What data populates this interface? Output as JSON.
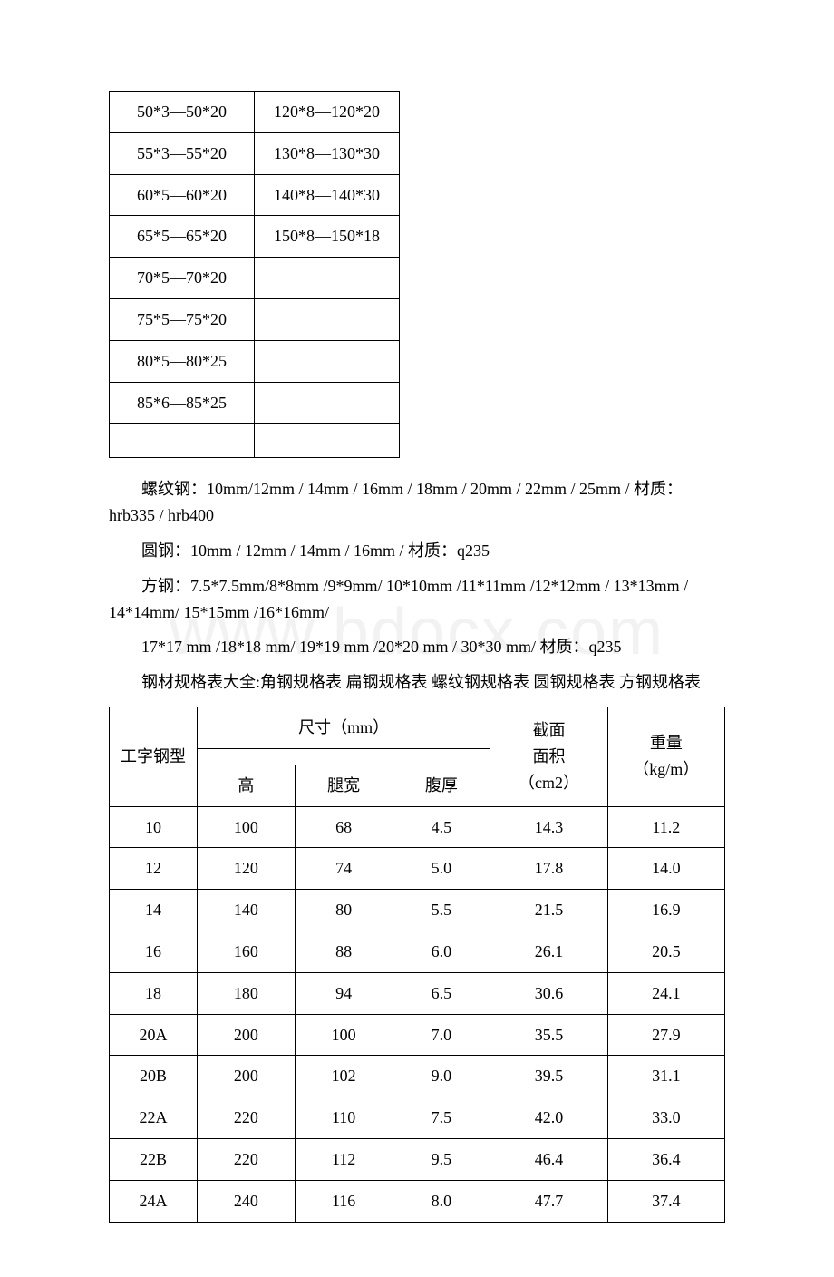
{
  "watermark": "www.bdocx.com",
  "table1": {
    "rows": [
      [
        "50*3—50*20",
        "120*8—120*20"
      ],
      [
        "55*3—55*20",
        "130*8—130*30"
      ],
      [
        "60*5—60*20",
        "140*8—140*30"
      ],
      [
        "65*5—65*20",
        "150*8—150*18"
      ],
      [
        "70*5—70*20",
        ""
      ],
      [
        "75*5—75*20",
        ""
      ],
      [
        "80*5—80*25",
        ""
      ],
      [
        "85*6—85*25",
        ""
      ],
      [
        "",
        ""
      ]
    ]
  },
  "paragraphs": {
    "p1": "螺纹钢：10mm/12mm / 14mm / 16mm / 18mm / 20mm / 22mm / 25mm / 材质：hrb335 / hrb400",
    "p2": "圆钢：10mm / 12mm / 14mm / 16mm / 材质：q235",
    "p3": "方钢：7.5*7.5mm/8*8mm /9*9mm/ 10*10mm /11*11mm /12*12mm / 13*13mm / 14*14mm/ 15*15mm /16*16mm/",
    "p4": "17*17 mm /18*18 mm/ 19*19 mm /20*20 mm / 30*30 mm/ 材质：q235",
    "p5": "钢材规格表大全:角钢规格表 扁钢规格表 螺纹钢规格表 圆钢规格表 方钢规格表"
  },
  "table2": {
    "header": {
      "type_label": "工字钢型",
      "size_label": "尺寸（mm）",
      "area_label_line1": "截面",
      "area_label_line2": "面积",
      "area_label_line3": "（cm2）",
      "weight_label_line1": "重量",
      "weight_label_line2": "（kg/m）",
      "sub_h": "高",
      "sub_w": "腿宽",
      "sub_t": "腹厚"
    },
    "rows": [
      {
        "type": "10",
        "h": "100",
        "w": "68",
        "t": "4.5",
        "area": "14.3",
        "weight": "11.2"
      },
      {
        "type": "12",
        "h": "120",
        "w": "74",
        "t": "5.0",
        "area": "17.8",
        "weight": "14.0"
      },
      {
        "type": "14",
        "h": "140",
        "w": "80",
        "t": "5.5",
        "area": "21.5",
        "weight": "16.9"
      },
      {
        "type": "16",
        "h": "160",
        "w": "88",
        "t": "6.0",
        "area": "26.1",
        "weight": "20.5"
      },
      {
        "type": "18",
        "h": "180",
        "w": "94",
        "t": "6.5",
        "area": "30.6",
        "weight": "24.1"
      },
      {
        "type": "20A",
        "h": "200",
        "w": "100",
        "t": "7.0",
        "area": "35.5",
        "weight": "27.9"
      },
      {
        "type": "20B",
        "h": "200",
        "w": "102",
        "t": "9.0",
        "area": "39.5",
        "weight": "31.1"
      },
      {
        "type": "22A",
        "h": "220",
        "w": "110",
        "t": "7.5",
        "area": "42.0",
        "weight": "33.0"
      },
      {
        "type": "22B",
        "h": "220",
        "w": "112",
        "t": "9.5",
        "area": "46.4",
        "weight": "36.4"
      },
      {
        "type": "24A",
        "h": "240",
        "w": "116",
        "t": "8.0",
        "area": "47.7",
        "weight": "37.4"
      }
    ]
  }
}
